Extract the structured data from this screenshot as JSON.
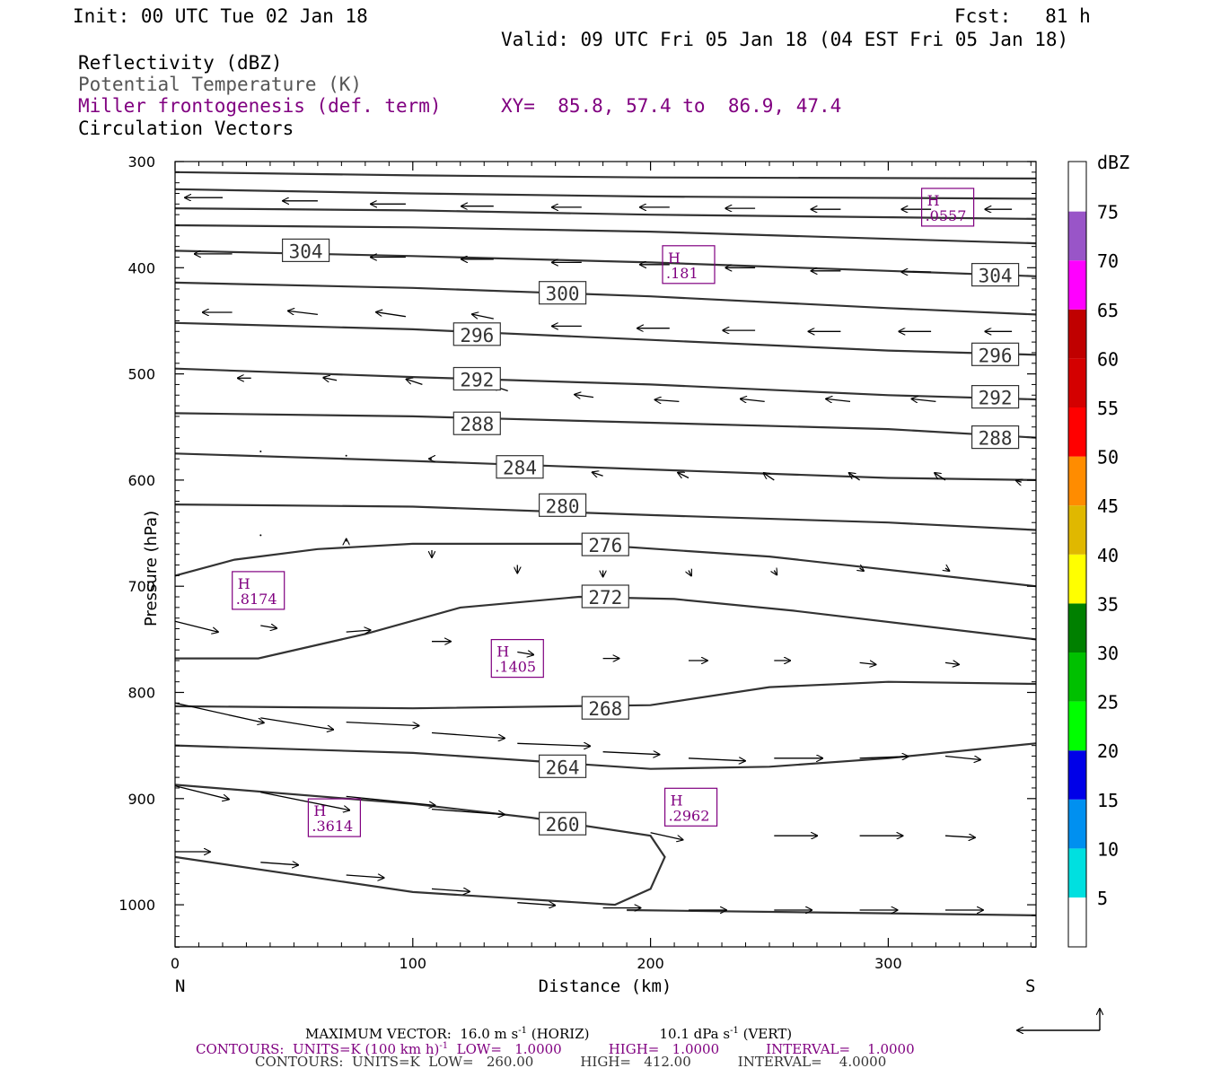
{
  "header": {
    "init": "Init: 00 UTC Tue 02 Jan 18",
    "fcst": "Fcst:   81 h",
    "valid": "Valid: 09 UTC Fri 05 Jan 18 (04 EST Fri 05 Jan 18)",
    "field1": "Reflectivity (dBZ)",
    "field2": "Potential Temperature (K)",
    "field3": "Miller frontogenesis (def. term)",
    "xy": "XY=  85.8, 57.4 to  86.9, 47.4",
    "field4": "Circulation Vectors"
  },
  "colorbar": {
    "title": "dBZ",
    "labels": [
      "5",
      "10",
      "15",
      "20",
      "25",
      "30",
      "35",
      "40",
      "45",
      "50",
      "55",
      "60",
      "65",
      "70",
      "75"
    ],
    "colors": [
      "#00e0e0",
      "#0090f0",
      "#0000e8",
      "#00ff00",
      "#00c000",
      "#008000",
      "#ffff00",
      "#e0b800",
      "#ff8c00",
      "#ff0000",
      "#d40000",
      "#c00000",
      "#ff00ff",
      "#9955c8",
      "#ffffff"
    ]
  },
  "footer": {
    "line1": "MAXIMUM VECTOR:  16.0 m s",
    "line1_horiz": " (HORIZ)",
    "line1_vert": "10.1 dPa s",
    "line1_vert_tail": " (VERT)",
    "line2_a": "CONTOURS:  UNITS=K (100 km h)",
    "line2_b": "  LOW=   1.0000",
    "line2_c": "HIGH=   1.0000",
    "line2_d": "INTERVAL=    1.0000",
    "line3_a": "CONTOURS:  UNITS=K  LOW=   260.00",
    "line3_b": "HIGH=   412.00",
    "line3_c": "INTERVAL=    4.0000",
    "exp": "-1"
  },
  "chart_data": {
    "type": "cross-section",
    "xlabel": "Distance (km)",
    "ylabel": "Pressure (hPa)",
    "x_ticks": [
      0,
      100,
      200,
      300
    ],
    "y_ticks": [
      300,
      400,
      500,
      600,
      700,
      800,
      900,
      1000
    ],
    "xlim": [
      0,
      362
    ],
    "ylim": [
      1040,
      300
    ],
    "x_end_labels": {
      "left": "N",
      "right": "S"
    },
    "theta_contours": [
      {
        "level": null,
        "points": [
          [
            0,
            310
          ],
          [
            100,
            313
          ],
          [
            200,
            315
          ],
          [
            362,
            316
          ]
        ]
      },
      {
        "level": null,
        "points": [
          [
            0,
            326
          ],
          [
            100,
            330
          ],
          [
            200,
            333
          ],
          [
            362,
            335
          ]
        ]
      },
      {
        "level": null,
        "points": [
          [
            0,
            344
          ],
          [
            100,
            346
          ],
          [
            200,
            350
          ],
          [
            362,
            354
          ]
        ]
      },
      {
        "level": null,
        "points": [
          [
            0,
            360
          ],
          [
            100,
            362
          ],
          [
            200,
            366
          ],
          [
            362,
            377
          ]
        ]
      },
      {
        "level": 304,
        "points": [
          [
            0,
            384
          ],
          [
            100,
            389
          ],
          [
            200,
            395
          ],
          [
            300,
            403
          ],
          [
            362,
            408
          ]
        ]
      },
      {
        "level": 300,
        "points": [
          [
            0,
            414
          ],
          [
            100,
            419
          ],
          [
            200,
            427
          ],
          [
            300,
            438
          ],
          [
            362,
            444
          ]
        ]
      },
      {
        "level": 296,
        "points": [
          [
            0,
            452
          ],
          [
            100,
            458
          ],
          [
            200,
            468
          ],
          [
            300,
            478
          ],
          [
            362,
            482
          ]
        ]
      },
      {
        "level": 292,
        "points": [
          [
            0,
            495
          ],
          [
            100,
            503
          ],
          [
            200,
            510
          ],
          [
            300,
            520
          ],
          [
            362,
            524
          ]
        ]
      },
      {
        "level": 288,
        "points": [
          [
            0,
            537
          ],
          [
            100,
            540
          ],
          [
            200,
            546
          ],
          [
            300,
            552
          ],
          [
            362,
            560
          ]
        ]
      },
      {
        "level": 284,
        "points": [
          [
            0,
            575
          ],
          [
            100,
            582
          ],
          [
            200,
            590
          ],
          [
            300,
            598
          ],
          [
            362,
            600
          ]
        ]
      },
      {
        "level": 280,
        "points": [
          [
            0,
            623
          ],
          [
            100,
            625
          ],
          [
            200,
            633
          ],
          [
            300,
            640
          ],
          [
            362,
            647
          ]
        ]
      },
      {
        "level": 276,
        "points": [
          [
            0,
            690
          ],
          [
            25,
            675
          ],
          [
            60,
            665
          ],
          [
            100,
            660
          ],
          [
            170,
            660
          ],
          [
            250,
            672
          ],
          [
            362,
            700
          ]
        ]
      },
      {
        "level": 272,
        "points": [
          [
            0,
            768
          ],
          [
            35,
            768
          ],
          [
            80,
            745
          ],
          [
            120,
            720
          ],
          [
            170,
            710
          ],
          [
            210,
            712
          ],
          [
            260,
            723
          ],
          [
            362,
            750
          ]
        ]
      },
      {
        "level": 268,
        "points": [
          [
            0,
            813
          ],
          [
            100,
            815
          ],
          [
            200,
            812
          ],
          [
            250,
            795
          ],
          [
            300,
            790
          ],
          [
            362,
            792
          ]
        ]
      },
      {
        "level": 264,
        "points": [
          [
            0,
            850
          ],
          [
            100,
            857
          ],
          [
            200,
            872
          ],
          [
            250,
            870
          ],
          [
            300,
            862
          ],
          [
            362,
            848
          ]
        ]
      },
      {
        "level": 260,
        "points": [
          [
            0,
            887
          ],
          [
            100,
            905
          ],
          [
            150,
            918
          ],
          [
            200,
            935
          ],
          [
            206,
            955
          ],
          [
            200,
            985
          ],
          [
            185,
            1000
          ],
          [
            100,
            988
          ],
          [
            0,
            955
          ]
        ]
      },
      {
        "level": null,
        "points": [
          [
            190,
            1005
          ],
          [
            300,
            1008
          ],
          [
            362,
            1010
          ]
        ]
      }
    ],
    "theta_labels": [
      {
        "level": "304",
        "x": 55,
        "p": 384
      },
      {
        "level": "304",
        "x": 345,
        "p": 407
      },
      {
        "level": "300",
        "x": 163,
        "p": 424
      },
      {
        "level": "296",
        "x": 127,
        "p": 463
      },
      {
        "level": "296",
        "x": 345,
        "p": 482
      },
      {
        "level": "292",
        "x": 127,
        "p": 505
      },
      {
        "level": "292",
        "x": 345,
        "p": 522
      },
      {
        "level": "288",
        "x": 127,
        "p": 547
      },
      {
        "level": "288",
        "x": 345,
        "p": 560
      },
      {
        "level": "284",
        "x": 145,
        "p": 588
      },
      {
        "level": "280",
        "x": 163,
        "p": 624
      },
      {
        "level": "276",
        "x": 181,
        "p": 661
      },
      {
        "level": "272",
        "x": 181,
        "p": 710
      },
      {
        "level": "268",
        "x": 181,
        "p": 815
      },
      {
        "level": "264",
        "x": 163,
        "p": 870
      },
      {
        "level": "260",
        "x": 163,
        "p": 924
      }
    ],
    "frontogenesis_maxima": [
      {
        "label": "H",
        "value": ".0557",
        "x": 325,
        "p": 343
      },
      {
        "label": "H",
        "value": ".181",
        "x": 216,
        "p": 397
      },
      {
        "label": "H",
        "value": ".8174",
        "x": 35,
        "p": 704
      },
      {
        "label": "H",
        "value": ".1405",
        "x": 144,
        "p": 768
      },
      {
        "label": "H",
        "value": ".3614",
        "x": 67,
        "p": 918
      },
      {
        "label": "H",
        "value": ".2962",
        "x": 217,
        "p": 908
      }
    ],
    "vectors": [
      {
        "x": 20,
        "p": 334,
        "u": -14,
        "v": 0
      },
      {
        "x": 60,
        "p": 337,
        "u": -13,
        "v": 0
      },
      {
        "x": 97,
        "p": 340,
        "u": -13,
        "v": 0
      },
      {
        "x": 134,
        "p": 342,
        "u": -12,
        "v": 0
      },
      {
        "x": 171,
        "p": 343,
        "u": -11,
        "v": 0
      },
      {
        "x": 208,
        "p": 343,
        "u": -11,
        "v": 0
      },
      {
        "x": 244,
        "p": 344,
        "u": -11,
        "v": 0
      },
      {
        "x": 280,
        "p": 345,
        "u": -11,
        "v": 0
      },
      {
        "x": 318,
        "p": 345,
        "u": -11,
        "v": 0
      },
      {
        "x": 352,
        "p": 345,
        "u": -10,
        "v": 0
      },
      {
        "x": 24,
        "p": 387,
        "u": -14,
        "v": 0
      },
      {
        "x": 60,
        "p": 388,
        "u": -13,
        "v": 0
      },
      {
        "x": 97,
        "p": 390,
        "u": -13,
        "v": 0
      },
      {
        "x": 134,
        "p": 392,
        "u": -12,
        "v": 0
      },
      {
        "x": 171,
        "p": 395,
        "u": -11,
        "v": 0
      },
      {
        "x": 208,
        "p": 397,
        "u": -11,
        "v": 0
      },
      {
        "x": 244,
        "p": 400,
        "u": -11,
        "v": 0
      },
      {
        "x": 280,
        "p": 403,
        "u": -11,
        "v": 0
      },
      {
        "x": 318,
        "p": 404,
        "u": -11,
        "v": 0
      },
      {
        "x": 352,
        "p": 406,
        "u": -10,
        "v": 0
      },
      {
        "x": 24,
        "p": 442,
        "u": -11,
        "v": 0
      },
      {
        "x": 60,
        "p": 444,
        "u": -11,
        "v": -0.4
      },
      {
        "x": 97,
        "p": 446,
        "u": -11,
        "v": -0.5
      },
      {
        "x": 134,
        "p": 448,
        "u": -8,
        "v": -0.5
      },
      {
        "x": 171,
        "p": 455,
        "u": -11,
        "v": 0
      },
      {
        "x": 208,
        "p": 457,
        "u": -12,
        "v": 0
      },
      {
        "x": 244,
        "p": 459,
        "u": -12,
        "v": 0
      },
      {
        "x": 280,
        "p": 460,
        "u": -12,
        "v": 0
      },
      {
        "x": 318,
        "p": 460,
        "u": -12,
        "v": 0
      },
      {
        "x": 352,
        "p": 460,
        "u": -10,
        "v": 0
      },
      {
        "x": 32,
        "p": 504,
        "u": -5,
        "v": 0
      },
      {
        "x": 68,
        "p": 506,
        "u": -5,
        "v": -0.3
      },
      {
        "x": 104,
        "p": 510,
        "u": -6,
        "v": -0.6
      },
      {
        "x": 140,
        "p": 516,
        "u": -6,
        "v": -0.6
      },
      {
        "x": 176,
        "p": 522,
        "u": -7,
        "v": -0.3
      },
      {
        "x": 212,
        "p": 526,
        "u": -9,
        "v": -0.2
      },
      {
        "x": 248,
        "p": 526,
        "u": -9,
        "v": -0.3
      },
      {
        "x": 284,
        "p": 526,
        "u": -9,
        "v": -0.3
      },
      {
        "x": 320,
        "p": 526,
        "u": -9,
        "v": -0.3
      },
      {
        "x": 352,
        "p": 525,
        "u": -8,
        "v": -0.3
      },
      {
        "x": 36,
        "p": 573,
        "u": -0.3,
        "v": 0
      },
      {
        "x": 72,
        "p": 577,
        "u": -0.3,
        "v": 0
      },
      {
        "x": 108,
        "p": 580,
        "u": -1,
        "v": 0
      },
      {
        "x": 144,
        "p": 590,
        "u": -3,
        "v": 0
      },
      {
        "x": 180,
        "p": 596,
        "u": -4,
        "v": -0.4
      },
      {
        "x": 216,
        "p": 598,
        "u": -4,
        "v": -0.6
      },
      {
        "x": 252,
        "p": 600,
        "u": -4,
        "v": -0.8
      },
      {
        "x": 288,
        "p": 600,
        "u": -4,
        "v": -0.8
      },
      {
        "x": 324,
        "p": 600,
        "u": -4,
        "v": -0.8
      },
      {
        "x": 356,
        "p": 602,
        "u": -2,
        "v": -0.2
      },
      {
        "x": 36,
        "p": 652,
        "u": -0.3,
        "v": 0
      },
      {
        "x": 72,
        "p": 658,
        "u": 0,
        "v": -0.3
      },
      {
        "x": 108,
        "p": 666,
        "u": 0,
        "v": 0.8
      },
      {
        "x": 144,
        "p": 680,
        "u": 0,
        "v": 0.9
      },
      {
        "x": 180,
        "p": 685,
        "u": 0,
        "v": 0.7
      },
      {
        "x": 216,
        "p": 685,
        "u": 1,
        "v": 0.6
      },
      {
        "x": 252,
        "p": 685,
        "u": 1,
        "v": 0.5
      },
      {
        "x": 288,
        "p": 683,
        "u": 1.5,
        "v": 0.3
      },
      {
        "x": 324,
        "p": 683,
        "u": 1.5,
        "v": 0.3
      },
      {
        "x": 0,
        "p": 733,
        "u": 16,
        "v": 1.2
      },
      {
        "x": 36,
        "p": 737,
        "u": 6,
        "v": 0.3
      },
      {
        "x": 72,
        "p": 743,
        "u": 9,
        "v": -0.2
      },
      {
        "x": 108,
        "p": 752,
        "u": 7,
        "v": 0
      },
      {
        "x": 144,
        "p": 762,
        "u": 6,
        "v": 0.3
      },
      {
        "x": 180,
        "p": 768,
        "u": 6,
        "v": 0
      },
      {
        "x": 216,
        "p": 770,
        "u": 7,
        "v": 0
      },
      {
        "x": 252,
        "p": 770,
        "u": 6,
        "v": 0
      },
      {
        "x": 288,
        "p": 772,
        "u": 6,
        "v": 0.2
      },
      {
        "x": 324,
        "p": 772,
        "u": 5,
        "v": 0.2
      },
      {
        "x": 0,
        "p": 810,
        "u": 33,
        "v": 2.2
      },
      {
        "x": 36,
        "p": 824,
        "u": 27,
        "v": 1.3
      },
      {
        "x": 72,
        "p": 828,
        "u": 27,
        "v": 0.4
      },
      {
        "x": 108,
        "p": 838,
        "u": 27,
        "v": 0.6
      },
      {
        "x": 144,
        "p": 848,
        "u": 27,
        "v": 0.3
      },
      {
        "x": 180,
        "p": 856,
        "u": 21,
        "v": 0.3
      },
      {
        "x": 216,
        "p": 862,
        "u": 21,
        "v": 0.3
      },
      {
        "x": 252,
        "p": 862,
        "u": 18,
        "v": 0
      },
      {
        "x": 288,
        "p": 862,
        "u": 18,
        "v": -0.2
      },
      {
        "x": 324,
        "p": 860,
        "u": 13,
        "v": 0.4
      },
      {
        "x": 0,
        "p": 888,
        "u": 20,
        "v": 1.5
      },
      {
        "x": 36,
        "p": 894,
        "u": 33,
        "v": 2
      },
      {
        "x": 72,
        "p": 898,
        "u": 33,
        "v": 1
      },
      {
        "x": 108,
        "p": 910,
        "u": 27,
        "v": 0.6
      },
      {
        "x": 200,
        "p": 932,
        "u": 12,
        "v": 0.8
      },
      {
        "x": 252,
        "p": 935,
        "u": 16,
        "v": 0
      },
      {
        "x": 288,
        "p": 935,
        "u": 16,
        "v": 0
      },
      {
        "x": 324,
        "p": 935,
        "u": 11,
        "v": 0.2
      },
      {
        "x": 0,
        "p": 950,
        "u": 13,
        "v": 0
      },
      {
        "x": 36,
        "p": 960,
        "u": 14,
        "v": 0.3
      },
      {
        "x": 72,
        "p": 972,
        "u": 14,
        "v": 0.3
      },
      {
        "x": 108,
        "p": 985,
        "u": 14,
        "v": 0.3
      },
      {
        "x": 144,
        "p": 998,
        "u": 14,
        "v": 0.3
      },
      {
        "x": 180,
        "p": 1003,
        "u": 14,
        "v": 0
      },
      {
        "x": 216,
        "p": 1005,
        "u": 14,
        "v": 0
      },
      {
        "x": 252,
        "p": 1005,
        "u": 14,
        "v": 0
      },
      {
        "x": 288,
        "p": 1005,
        "u": 14,
        "v": 0
      },
      {
        "x": 324,
        "p": 1005,
        "u": 14,
        "v": 0
      }
    ]
  }
}
